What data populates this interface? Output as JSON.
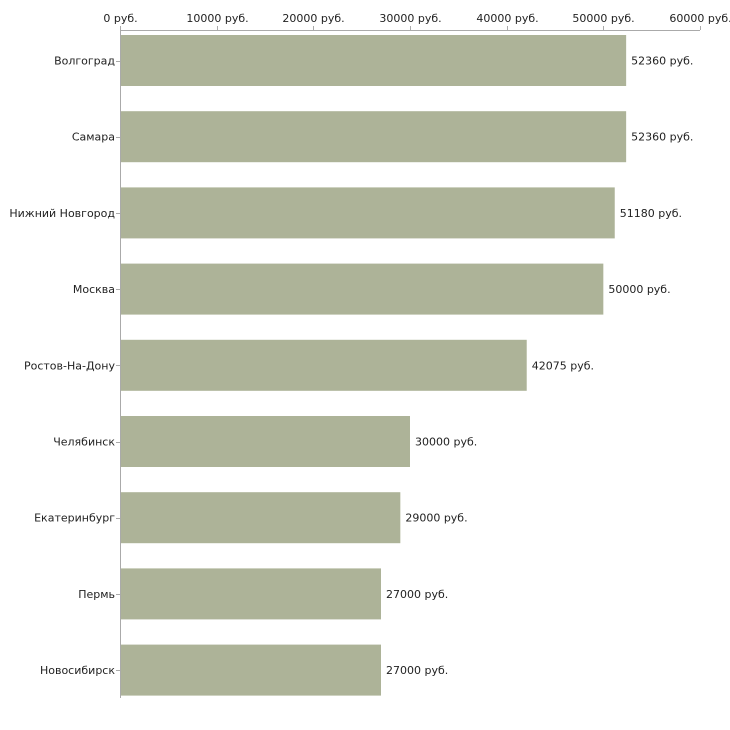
{
  "chart_data": {
    "type": "bar",
    "orientation": "horizontal",
    "categories": [
      "Волгоград",
      "Самара",
      "Нижний Новгород",
      "Москва",
      "Ростов-На-Дону",
      "Челябинск",
      "Екатеринбург",
      "Пермь",
      "Новосибирск"
    ],
    "values": [
      52360,
      52360,
      51180,
      50000,
      42075,
      30000,
      29000,
      27000,
      27000
    ],
    "value_labels": [
      "52360 руб.",
      "52360 руб.",
      "51180 руб.",
      "50000 руб.",
      "42075 руб.",
      "30000 руб.",
      "29000 руб.",
      "27000 руб.",
      "27000 руб."
    ],
    "xlim": [
      0,
      60000
    ],
    "x_ticks": [
      0,
      10000,
      20000,
      30000,
      40000,
      50000,
      60000
    ],
    "x_tick_labels": [
      "0 руб.",
      "10000 руб.",
      "20000 руб.",
      "30000 руб.",
      "40000 руб.",
      "50000 руб.",
      "60000 руб."
    ],
    "axis_position": "top",
    "grid": false,
    "title": "",
    "xlabel": "",
    "ylabel": "",
    "bar_color": "#adb398",
    "axis_color": "#aaaaaa"
  }
}
